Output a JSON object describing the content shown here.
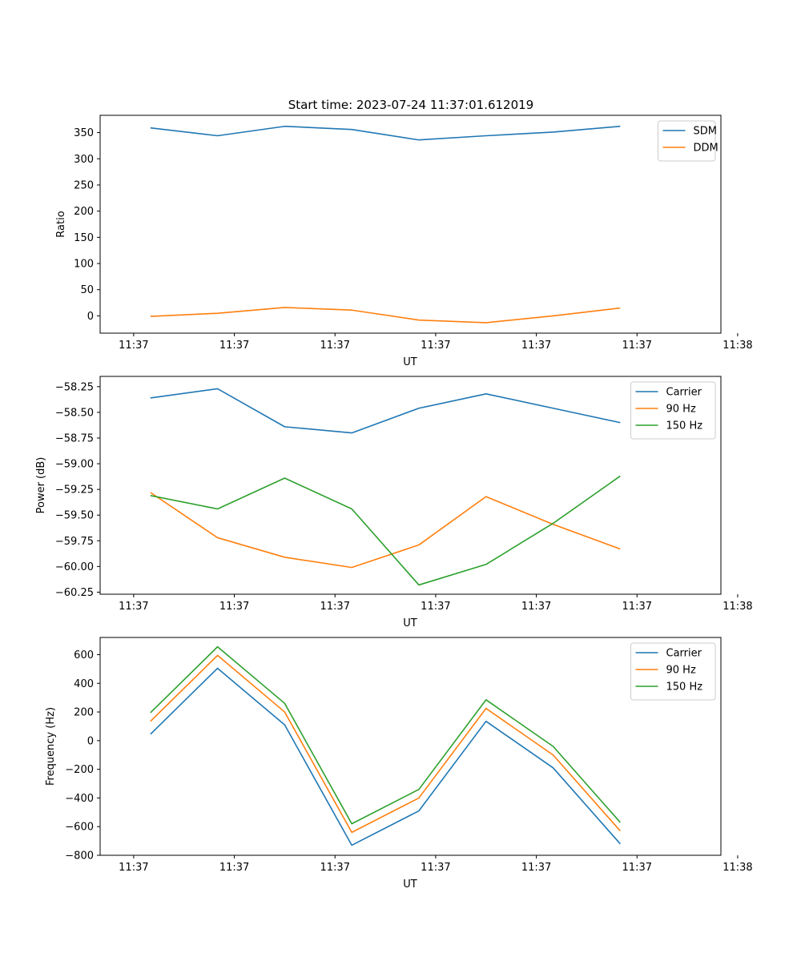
{
  "figure_title": "Start time: 2023-07-24 11:37:01.612019",
  "colors": {
    "blue": "#1f77b4",
    "orange": "#ff7f0e",
    "green": "#2ca02c"
  },
  "chart_data": [
    {
      "type": "line",
      "title": "Start time: 2023-07-24 11:37:01.612019",
      "xlabel": "UT",
      "ylabel": "Ratio",
      "x": [
        0,
        1,
        2,
        3,
        4,
        5,
        6,
        7
      ],
      "xlim": [
        -0.75,
        8.5
      ],
      "xticks": [
        {
          "x": -0.25,
          "label": "11:37"
        },
        {
          "x": 1.25,
          "label": "11:37"
        },
        {
          "x": 2.75,
          "label": "11:37"
        },
        {
          "x": 4.25,
          "label": "11:37"
        },
        {
          "x": 5.75,
          "label": "11:37"
        },
        {
          "x": 7.25,
          "label": "11:37"
        },
        {
          "x": 8.75,
          "label": "11:38"
        }
      ],
      "ylim": [
        -33,
        383
      ],
      "yticks": [
        0,
        50,
        100,
        150,
        200,
        250,
        300,
        350
      ],
      "ytick_labels": [
        "0",
        "50",
        "100",
        "150",
        "200",
        "250",
        "300",
        "350"
      ],
      "legend_position": "top-right",
      "series": [
        {
          "name": "SDM",
          "color": "#1f77b4",
          "values": [
            359,
            344,
            362,
            356,
            336,
            344,
            351,
            362
          ]
        },
        {
          "name": "DDM",
          "color": "#ff7f0e",
          "values": [
            -1,
            5,
            16,
            11,
            -8,
            -13,
            0,
            15
          ]
        }
      ]
    },
    {
      "type": "line",
      "title": "",
      "xlabel": "UT",
      "ylabel": "Power (dB)",
      "x": [
        0,
        1,
        2,
        3,
        4,
        5,
        6,
        7
      ],
      "xlim": [
        -0.75,
        8.5
      ],
      "xticks": [
        {
          "x": -0.25,
          "label": "11:37"
        },
        {
          "x": 1.25,
          "label": "11:37"
        },
        {
          "x": 2.75,
          "label": "11:37"
        },
        {
          "x": 4.25,
          "label": "11:37"
        },
        {
          "x": 5.75,
          "label": "11:37"
        },
        {
          "x": 7.25,
          "label": "11:37"
        },
        {
          "x": 8.75,
          "label": "11:38"
        }
      ],
      "ylim": [
        -60.27,
        -58.15
      ],
      "yticks": [
        -60.25,
        -60.0,
        -59.75,
        -59.5,
        -59.25,
        -59.0,
        -58.75,
        -58.5,
        -58.25
      ],
      "ytick_labels": [
        "−60.25",
        "−60.00",
        "−59.75",
        "−59.50",
        "−59.25",
        "−59.00",
        "−58.75",
        "−58.50",
        "−58.25"
      ],
      "legend_position": "top-right",
      "series": [
        {
          "name": "Carrier",
          "color": "#1f77b4",
          "values": [
            -58.36,
            -58.27,
            -58.64,
            -58.7,
            -58.46,
            -58.32,
            -58.46,
            -58.6
          ]
        },
        {
          "name": "90 Hz",
          "color": "#ff7f0e",
          "values": [
            -59.28,
            -59.72,
            -59.91,
            -60.01,
            -59.79,
            -59.32,
            -59.59,
            -59.83
          ]
        },
        {
          "name": "150 Hz",
          "color": "#2ca02c",
          "values": [
            -59.31,
            -59.44,
            -59.14,
            -59.44,
            -60.18,
            -59.98,
            -59.58,
            -59.12
          ]
        }
      ]
    },
    {
      "type": "line",
      "title": "",
      "xlabel": "UT",
      "ylabel": "Frequency (Hz)",
      "x": [
        0,
        1,
        2,
        3,
        4,
        5,
        6,
        7
      ],
      "xlim": [
        -0.75,
        8.5
      ],
      "xticks": [
        {
          "x": -0.25,
          "label": "11:37"
        },
        {
          "x": 1.25,
          "label": "11:37"
        },
        {
          "x": 2.75,
          "label": "11:37"
        },
        {
          "x": 4.25,
          "label": "11:37"
        },
        {
          "x": 5.75,
          "label": "11:37"
        },
        {
          "x": 7.25,
          "label": "11:37"
        },
        {
          "x": 8.75,
          "label": "11:38"
        }
      ],
      "ylim": [
        -800,
        720
      ],
      "yticks": [
        -800,
        -600,
        -400,
        -200,
        0,
        200,
        400,
        600
      ],
      "ytick_labels": [
        "−800",
        "−600",
        "−400",
        "−200",
        "0",
        "200",
        "400",
        "600"
      ],
      "legend_position": "top-right",
      "series": [
        {
          "name": "Carrier",
          "color": "#1f77b4",
          "values": [
            45,
            505,
            110,
            -730,
            -490,
            135,
            -190,
            -720
          ]
        },
        {
          "name": "90 Hz",
          "color": "#ff7f0e",
          "values": [
            135,
            595,
            200,
            -640,
            -400,
            225,
            -100,
            -630
          ]
        },
        {
          "name": "150 Hz",
          "color": "#2ca02c",
          "values": [
            195,
            655,
            260,
            -580,
            -340,
            285,
            -40,
            -570
          ]
        }
      ]
    }
  ]
}
